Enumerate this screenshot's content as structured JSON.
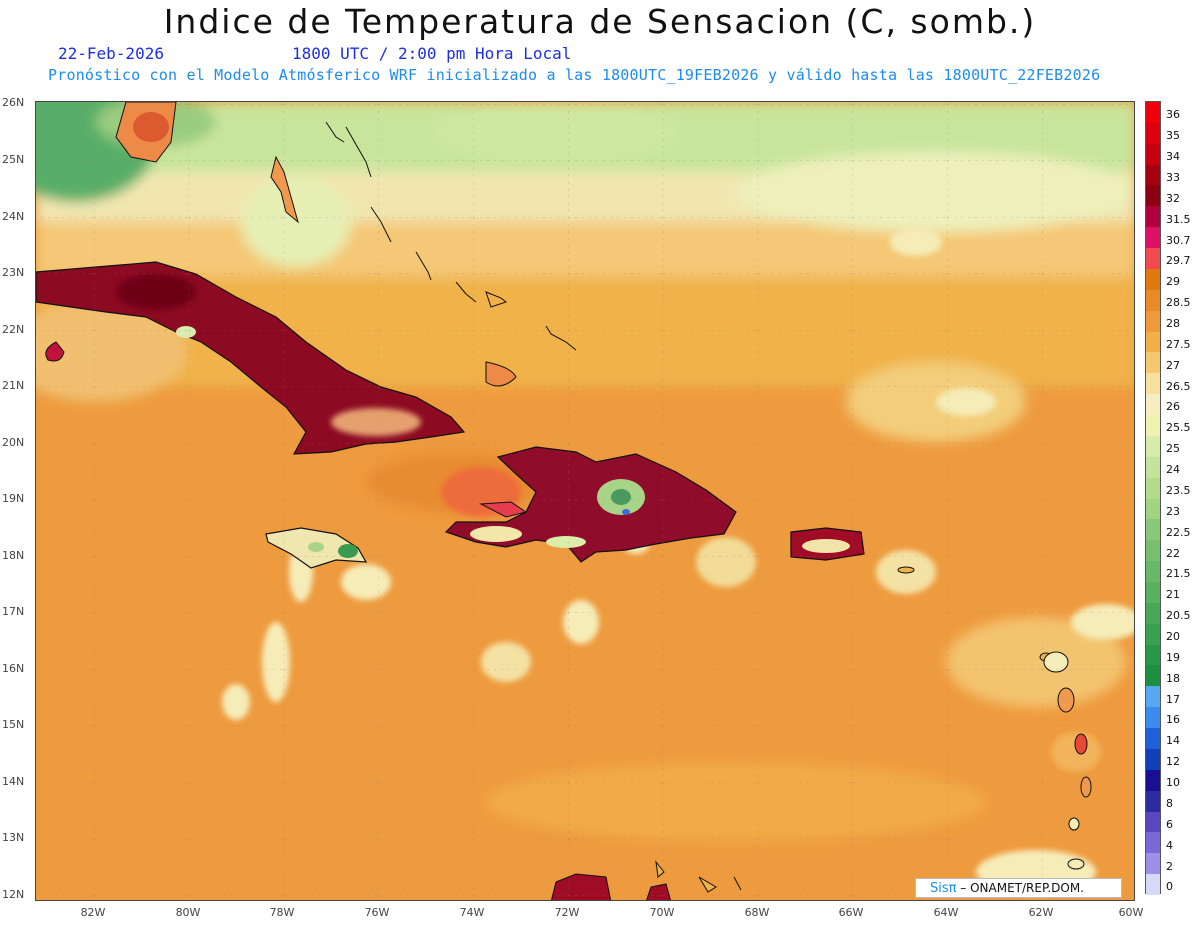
{
  "title": "Indice de Temperatura de Sensacion (C, somb.)",
  "date": "22-Feb-2026",
  "valid_time": "1800 UTC / 2:00 pm Hora Local",
  "subtitle": "Pronóstico con el Modelo Atmósferico WRF inicializado a las 1800UTC_19FEB2026 y válido hasta las  1800UTC_22FEB2026",
  "credit": {
    "brand": "Sisπ",
    "text": " – ONAMET/REP.DOM."
  },
  "lat_labels": [
    "26N",
    "25N",
    "24N",
    "23N",
    "22N",
    "21N",
    "20N",
    "19N",
    "18N",
    "17N",
    "16N",
    "15N",
    "14N",
    "13N",
    "12N"
  ],
  "lon_labels": [
    "82W",
    "80W",
    "78W",
    "76W",
    "74W",
    "72W",
    "70W",
    "68W",
    "66W",
    "64W",
    "62W",
    "60W"
  ],
  "map_extent": {
    "lon_min": -83.2,
    "lon_max": -60.0,
    "lat_min": 11.9,
    "lat_max": 26.05
  },
  "colorbar": {
    "levels": [
      "36",
      "35",
      "34",
      "33",
      "32",
      "31.5",
      "30.7",
      "29.7",
      "29",
      "28.5",
      "28",
      "27.5",
      "27",
      "26.5",
      "26",
      "25.5",
      "25",
      "24",
      "23.5",
      "23",
      "22.5",
      "22",
      "21.5",
      "21",
      "20.5",
      "20",
      "19",
      "18",
      "17",
      "16",
      "14",
      "12",
      "10",
      "8",
      "6",
      "4",
      "2",
      "0"
    ],
    "colors": [
      "#f0000a",
      "#dc0010",
      "#c8000f",
      "#a50010",
      "#8c0012",
      "#b00040",
      "#dc1064",
      "#f04a50",
      "#e07810",
      "#e88a28",
      "#ec9a3c",
      "#f2b04a",
      "#f5c870",
      "#f8e0a0",
      "#f6eec0",
      "#eef4b0",
      "#d6ecaa",
      "#c4e49c",
      "#b2dc8c",
      "#a0d480",
      "#88c878",
      "#78c070",
      "#68b868",
      "#58b060",
      "#48a858",
      "#38a050",
      "#289848",
      "#1c9040",
      "#58a8f0",
      "#3c8cf0",
      "#2060d8",
      "#1040b8",
      "#181090",
      "#2c2ca0",
      "#5848c0",
      "#7868d8",
      "#9c90e8",
      "#d8d8f8"
    ]
  },
  "features": {
    "cuba": "Cuba",
    "hispaniola": "Hispaniola",
    "jamaica": "Jamaica",
    "puerto_rico": "Puerto Rico",
    "florida": "Florida",
    "bahamas": "Bahamas"
  }
}
